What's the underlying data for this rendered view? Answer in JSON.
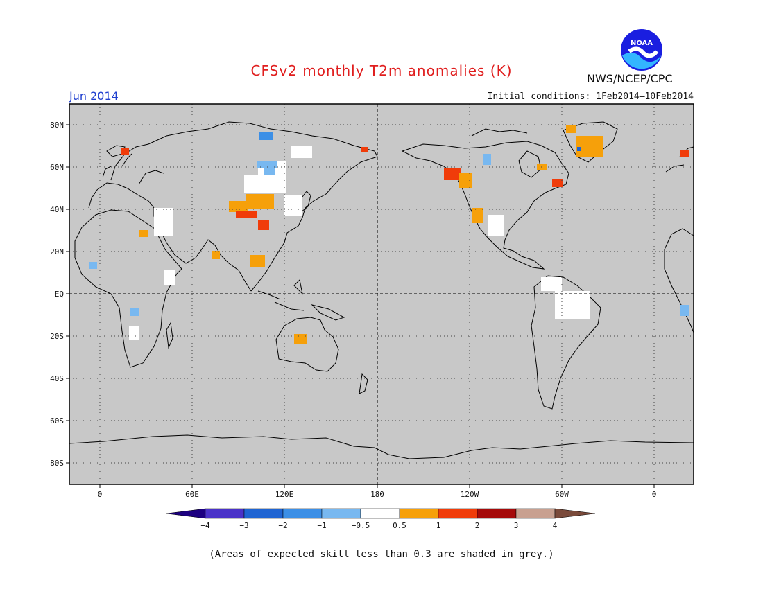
{
  "header": {
    "title": "CFSv2 monthly T2m anomalies (K)",
    "agency": "NWS/NCEP/CPC",
    "logo_text": "NOAA",
    "month": "Jun 2014",
    "initial_conditions": "Initial conditions: 1Feb2014—10Feb2014"
  },
  "map": {
    "lat_labels": [
      "80N",
      "60N",
      "40N",
      "20N",
      "EQ",
      "20S",
      "40S",
      "60S",
      "80S"
    ],
    "lon_labels": [
      "0",
      "60E",
      "120E",
      "180",
      "120W",
      "60W",
      "0"
    ],
    "background_color": "#c8c8c8",
    "coast_color": "#000000"
  },
  "colorbar": {
    "labels": [
      "−4",
      "−3",
      "−2",
      "−1",
      "−0.5",
      "0.5",
      "1",
      "2",
      "3",
      "4"
    ],
    "colors": [
      "#1c0080",
      "#4a32c8",
      "#1f64d2",
      "#3c8fe6",
      "#78b8f0",
      "#ffffff",
      "#f6a00a",
      "#f03c0a",
      "#a50a0a",
      "#c8a090",
      "#7a4a3a"
    ]
  },
  "footnote": "(Areas of expected skill less than 0.3 are shaded in grey.)"
}
